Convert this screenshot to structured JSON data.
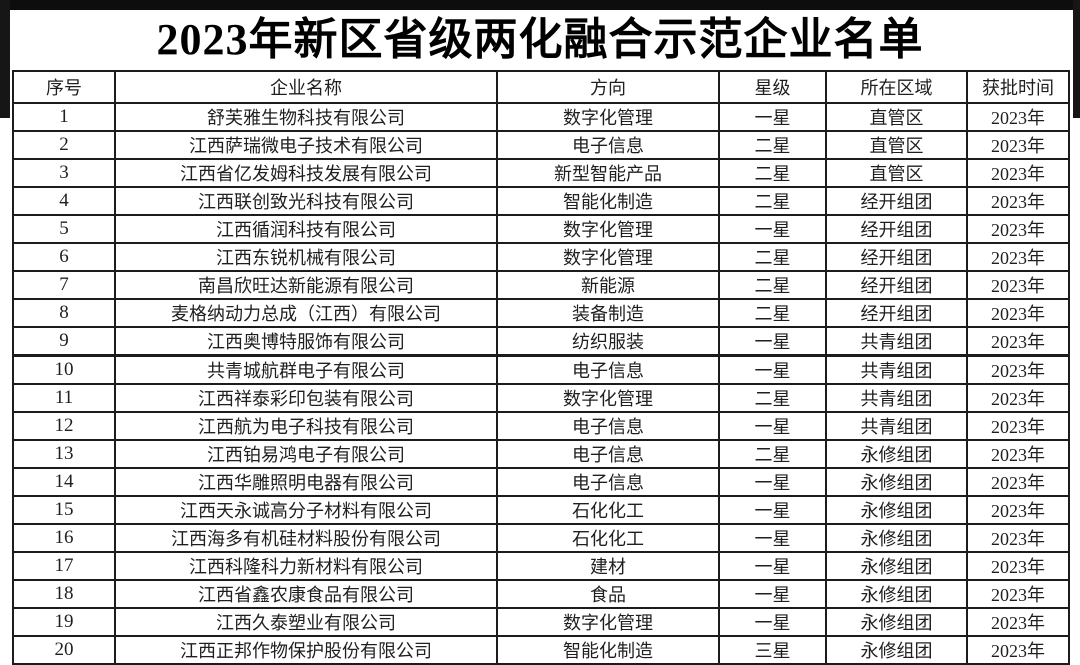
{
  "page": {
    "title": "2023年新区省级两化融合示范企业名单"
  },
  "colors": {
    "background": "#ffffff",
    "border": "#1c1c1c",
    "text": "#1f1f1f",
    "title": "#000000",
    "scan_edge": "#0d0d0d"
  },
  "table": {
    "columns": [
      "序号",
      "企业名称",
      "方向",
      "星级",
      "所在区域",
      "获批时间"
    ],
    "column_keys": [
      "no",
      "company-name",
      "direction",
      "star-level",
      "region",
      "approval-time"
    ],
    "rows": [
      [
        "1",
        "舒芙雅生物科技有限公司",
        "数字化管理",
        "一星",
        "直管区",
        "2023年"
      ],
      [
        "2",
        "江西萨瑞微电子技术有限公司",
        "电子信息",
        "二星",
        "直管区",
        "2023年"
      ],
      [
        "3",
        "江西省亿发姆科技发展有限公司",
        "新型智能产品",
        "二星",
        "直管区",
        "2023年"
      ],
      [
        "4",
        "江西联创致光科技有限公司",
        "智能化制造",
        "二星",
        "经开组团",
        "2023年"
      ],
      [
        "5",
        "江西循润科技有限公司",
        "数字化管理",
        "一星",
        "经开组团",
        "2023年"
      ],
      [
        "6",
        "江西东锐机械有限公司",
        "数字化管理",
        "二星",
        "经开组团",
        "2023年"
      ],
      [
        "7",
        "南昌欣旺达新能源有限公司",
        "新能源",
        "二星",
        "经开组团",
        "2023年"
      ],
      [
        "8",
        "麦格纳动力总成（江西）有限公司",
        "装备制造",
        "二星",
        "经开组团",
        "2023年"
      ],
      [
        "9",
        "江西奥博特服饰有限公司",
        "纺织服装",
        "一星",
        "共青组团",
        "2023年"
      ],
      [
        "10",
        "共青城航群电子有限公司",
        "电子信息",
        "一星",
        "共青组团",
        "2023年"
      ],
      [
        "11",
        "江西祥泰彩印包装有限公司",
        "数字化管理",
        "二星",
        "共青组团",
        "2023年"
      ],
      [
        "12",
        "江西航为电子科技有限公司",
        "电子信息",
        "一星",
        "共青组团",
        "2023年"
      ],
      [
        "13",
        "江西铂易鸿电子有限公司",
        "电子信息",
        "二星",
        "永修组团",
        "2023年"
      ],
      [
        "14",
        "江西华雕照明电器有限公司",
        "电子信息",
        "一星",
        "永修组团",
        "2023年"
      ],
      [
        "15",
        "江西天永诚高分子材料有限公司",
        "石化化工",
        "一星",
        "永修组团",
        "2023年"
      ],
      [
        "16",
        "江西海多有机硅材料股份有限公司",
        "石化化工",
        "一星",
        "永修组团",
        "2023年"
      ],
      [
        "17",
        "江西科隆科力新材料有限公司",
        "建材",
        "一星",
        "永修组团",
        "2023年"
      ],
      [
        "18",
        "江西省鑫农康食品有限公司",
        "食品",
        "一星",
        "永修组团",
        "2023年"
      ],
      [
        "19",
        "江西久泰塑业有限公司",
        "数字化管理",
        "一星",
        "永修组团",
        "2023年"
      ],
      [
        "20",
        "江西正邦作物保护股份有限公司",
        "智能化制造",
        "三星",
        "永修组团",
        "2023年"
      ]
    ]
  }
}
